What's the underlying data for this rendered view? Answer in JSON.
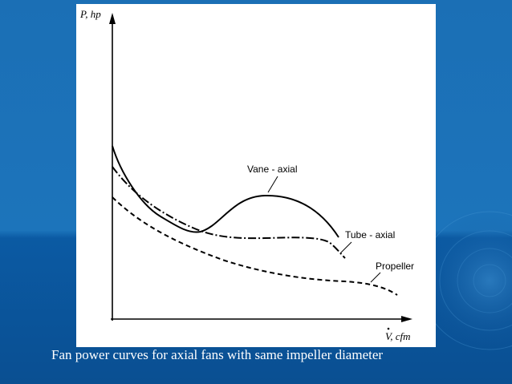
{
  "diagram": {
    "y_axis_label": "P, hp",
    "x_axis_label": "V, cfm",
    "curves": [
      {
        "label": "Vane - axial"
      },
      {
        "label": "Tube - axial"
      },
      {
        "label": "Propeller"
      }
    ],
    "caption": "Fan power curves for axial fans with same impeller diameter"
  }
}
